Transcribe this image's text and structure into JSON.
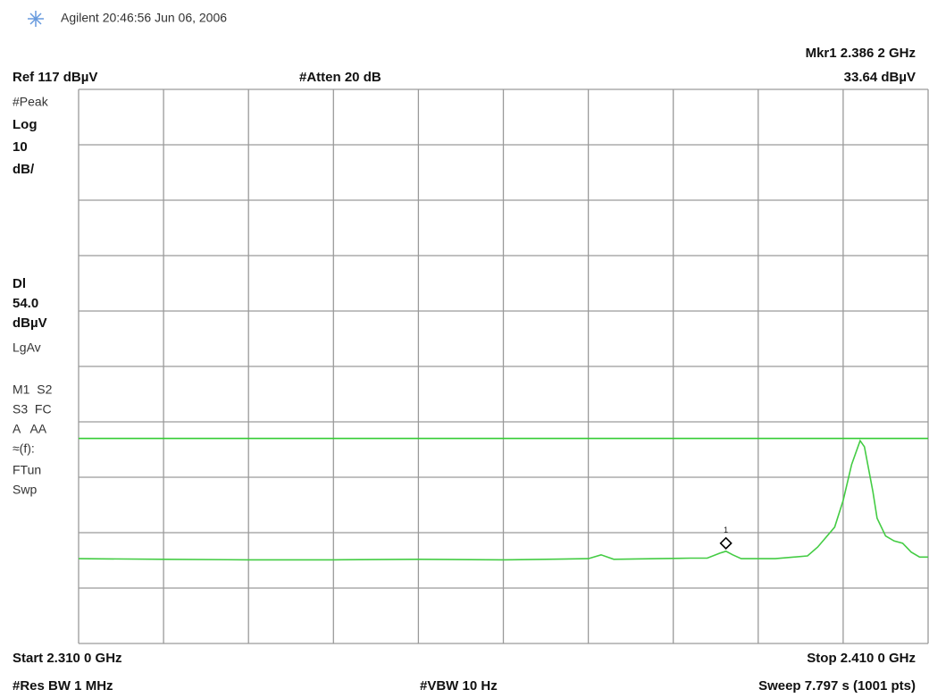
{
  "chart_data": {
    "type": "line",
    "header": "Agilent 20:46:56 Jun 06, 2006",
    "marker_readout": "Mkr1 2.386 2 GHz",
    "marker_level": "33.64 dBµV",
    "ref_label": "Ref 117 dBµV",
    "atten_label": "#Atten 20 dB",
    "side_labels": [
      "#Peak",
      "Log",
      "10",
      "dB/",
      "Dl",
      "54.0",
      "dBµV",
      "LgAv",
      "M1  S2",
      "S3  FC",
      "A   AA",
      "≈(f):",
      "FTun",
      "Swp"
    ],
    "start_label": "Start 2.310 0 GHz",
    "stop_label": "Stop 2.410 0 GHz",
    "rbw_label": "#Res BW 1 MHz",
    "vbw_label": "#VBW 10 Hz",
    "sweep_label": "Sweep 7.797 s (1001 pts)",
    "xlim": [
      2.31,
      2.41
    ],
    "ylim": [
      17,
      117
    ],
    "xticks": [
      2.31,
      2.32,
      2.33,
      2.34,
      2.35,
      2.36,
      2.37,
      2.38,
      2.39,
      2.4,
      2.41
    ],
    "yticks": [
      17,
      27,
      37,
      47,
      57,
      67,
      77,
      87,
      97,
      107,
      117
    ],
    "grid": true,
    "display_line": 54,
    "display_line_color": "#33cc33",
    "marker": {
      "x": 2.3862,
      "y": 33.64,
      "label": "1"
    },
    "series": [
      {
        "color": "#44cc44",
        "x": [
          2.31,
          2.32,
          2.33,
          2.34,
          2.35,
          2.36,
          2.365,
          2.37,
          2.3715,
          2.373,
          2.378,
          2.382,
          2.384,
          2.3855,
          2.3862,
          2.387,
          2.388,
          2.392,
          2.3958,
          2.397,
          2.399,
          2.4,
          2.401,
          2.402,
          2.4025,
          2.4035,
          2.404,
          2.405,
          2.406,
          2.407,
          2.408,
          2.409,
          2.41
        ],
        "values": [
          32.3,
          32.2,
          32.1,
          32.1,
          32.2,
          32.1,
          32.2,
          32.3,
          33.0,
          32.2,
          32.3,
          32.4,
          32.4,
          33.3,
          33.64,
          33.0,
          32.3,
          32.3,
          32.8,
          34.4,
          38.0,
          42.8,
          49.3,
          53.6,
          52.5,
          44.4,
          39.6,
          36.4,
          35.5,
          35.1,
          33.5,
          32.6,
          32.6
        ]
      }
    ]
  }
}
